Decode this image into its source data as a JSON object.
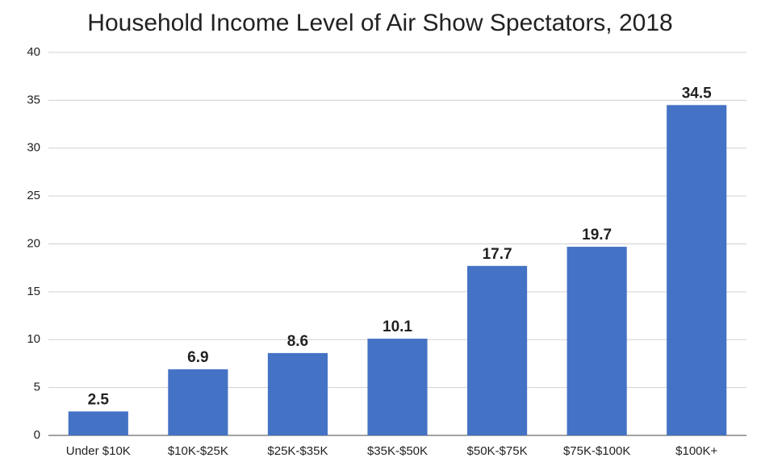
{
  "chart_data": {
    "type": "bar",
    "title": "Household Income Level of Air Show Spectators, 2018",
    "categories": [
      "Under $10K",
      "$10K-$25K",
      "$25K-$35K",
      "$35K-$50K",
      "$50K-$75K",
      "$75K-$100K",
      "$100K+"
    ],
    "values": [
      2.5,
      6.9,
      8.6,
      10.1,
      17.7,
      19.7,
      34.5
    ],
    "color": "#4472c4",
    "ylim": [
      0,
      40
    ],
    "yticks": [
      0,
      5,
      10,
      15,
      20,
      25,
      30,
      35,
      40
    ],
    "grid": true
  }
}
